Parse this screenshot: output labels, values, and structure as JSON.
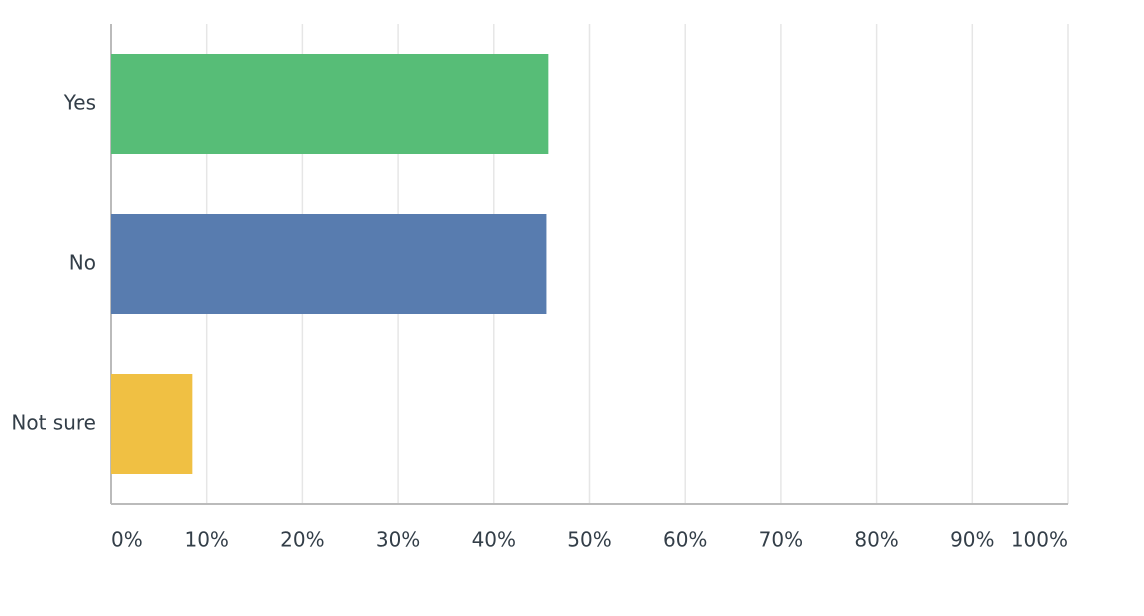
{
  "chart_data": {
    "type": "bar",
    "orientation": "horizontal",
    "categories": [
      "Yes",
      "No",
      "Not sure"
    ],
    "values": [
      45.7,
      45.5,
      8.5
    ],
    "colors": [
      "#57bd77",
      "#587caf",
      "#f0c043"
    ],
    "xlim": [
      0,
      100
    ],
    "xticks": [
      {
        "value": 0,
        "label": "0%"
      },
      {
        "value": 10,
        "label": "10%"
      },
      {
        "value": 20,
        "label": "20%"
      },
      {
        "value": 30,
        "label": "30%"
      },
      {
        "value": 40,
        "label": "40%"
      },
      {
        "value": 50,
        "label": "50%"
      },
      {
        "value": 60,
        "label": "60%"
      },
      {
        "value": 70,
        "label": "70%"
      },
      {
        "value": 80,
        "label": "80%"
      },
      {
        "value": 90,
        "label": "90%"
      },
      {
        "value": 100,
        "label": "100%"
      }
    ],
    "grid": true
  }
}
